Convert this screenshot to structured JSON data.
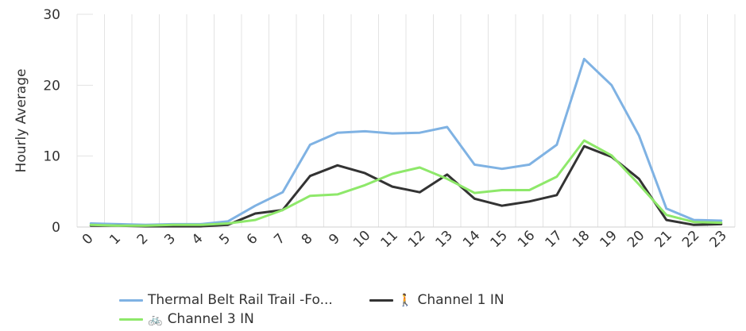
{
  "chart_data": {
    "type": "line",
    "title": "",
    "xlabel": "",
    "ylabel": "Hourly Average",
    "ylim": [
      0,
      30
    ],
    "yticks": [
      0,
      10,
      20,
      30
    ],
    "grid": "vertical",
    "legend_position": "bottom",
    "categories": [
      "0",
      "1",
      "2",
      "3",
      "4",
      "5",
      "6",
      "7",
      "8",
      "9",
      "10",
      "11",
      "12",
      "13",
      "14",
      "15",
      "16",
      "17",
      "18",
      "19",
      "20",
      "21",
      "22",
      "23"
    ],
    "series": [
      {
        "name": "Thermal Belt Rail Trail -Fo...",
        "color": "#7fb2e3",
        "icon": "",
        "values": [
          0.5,
          0.4,
          0.3,
          0.4,
          0.4,
          0.8,
          3.0,
          4.9,
          11.6,
          13.3,
          13.5,
          13.2,
          13.3,
          14.1,
          8.8,
          8.2,
          8.8,
          11.6,
          23.7,
          20.0,
          12.9,
          2.6,
          1.0,
          0.9
        ]
      },
      {
        "name": "Channel 1 IN",
        "color": "#333333",
        "icon": "🚶",
        "values": [
          0.2,
          0.2,
          0.1,
          0.1,
          0.1,
          0.3,
          1.9,
          2.4,
          7.2,
          8.7,
          7.6,
          5.7,
          4.9,
          7.4,
          4.0,
          3.0,
          3.6,
          4.5,
          11.4,
          9.9,
          6.8,
          1.0,
          0.3,
          0.4
        ]
      },
      {
        "name": "Channel 3 IN",
        "color": "#8ee86a",
        "icon": "🚲",
        "values": [
          0.3,
          0.2,
          0.2,
          0.3,
          0.3,
          0.5,
          1.0,
          2.4,
          4.4,
          4.6,
          5.9,
          7.5,
          8.4,
          6.8,
          4.8,
          5.2,
          5.2,
          7.1,
          12.2,
          10.1,
          6.0,
          1.7,
          0.7,
          0.6
        ]
      }
    ]
  }
}
